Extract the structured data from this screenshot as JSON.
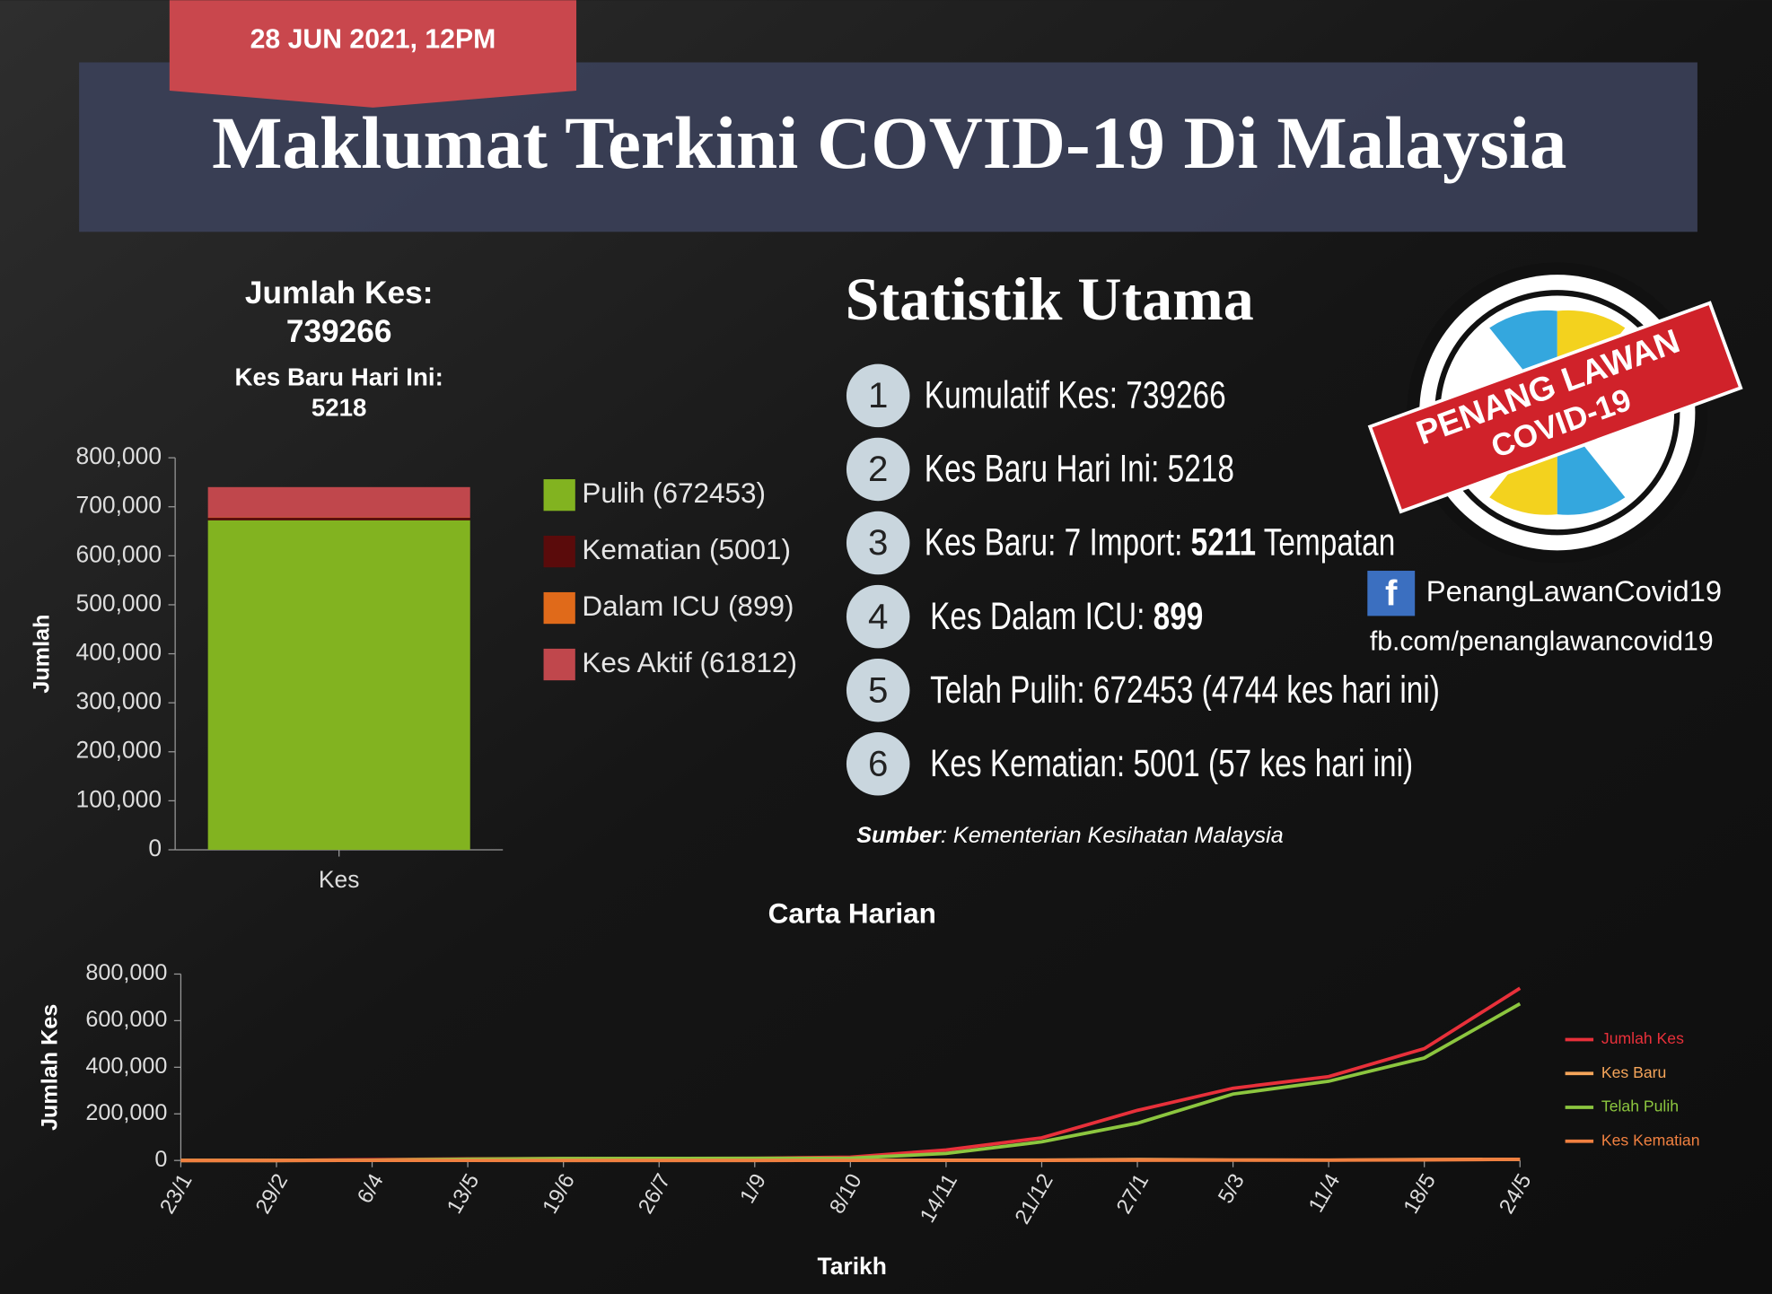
{
  "header": {
    "date": "28 JUN 2021, 12PM",
    "title": "Maklumat Terkini COVID-19 Di Malaysia"
  },
  "summary": {
    "total_label": "Jumlah Kes:",
    "total": 739266,
    "new_label": "Kes Baru Hari Ini:",
    "new": 5218
  },
  "stats": {
    "title": "Statistik Utama",
    "items": [
      {
        "number": 1,
        "parts": [
          {
            "text": "Kumulatif Kes: 739266",
            "bold": false
          }
        ]
      },
      {
        "number": 2,
        "parts": [
          {
            "text": "Kes Baru Hari Ini: 5218",
            "bold": false
          }
        ]
      },
      {
        "number": 3,
        "parts": [
          {
            "text": "Kes Baru: 7 Import: ",
            "bold": false
          },
          {
            "text": "5211",
            "bold": true
          },
          {
            "text": " Tempatan",
            "bold": false
          }
        ]
      },
      {
        "number": 4,
        "parts": [
          {
            "text": "Kes Dalam ICU: ",
            "bold": false
          },
          {
            "text": "899",
            "bold": true
          }
        ]
      },
      {
        "number": 5,
        "parts": [
          {
            "text": "Telah Pulih: 672453 (4744 kes hari ini)",
            "bold": false
          }
        ]
      },
      {
        "number": 6,
        "parts": [
          {
            "text": "Kes Kematian: 5001 (57 kes hari ini)",
            "bold": false
          }
        ]
      }
    ],
    "source_label": "Sumber",
    "source": ": Kementerian Kesihatan Malaysia"
  },
  "logo": {
    "line1": "PENANG LAWAN",
    "line2": "COVID-19"
  },
  "social": {
    "icon": "f",
    "page": "PenangLawanCovid19",
    "url": "fb.com/penanglawancovid19"
  },
  "chart_data": [
    {
      "type": "bar",
      "stacked": true,
      "categories": [
        "Kes"
      ],
      "ylabel": "Jumlah",
      "ylim": [
        0,
        800000
      ],
      "yticks": [
        0,
        {
          "value": 100000,
          "label": "100,000"
        },
        {
          "value": 200000,
          "label": "200,000"
        },
        {
          "value": 300000,
          "label": "300,000"
        },
        {
          "value": 400000,
          "label": "400,000"
        },
        {
          "value": 500000,
          "label": "500,000"
        },
        {
          "value": 600000,
          "label": "600,000"
        },
        {
          "value": 700000,
          "label": "700,000"
        },
        {
          "value": 800000,
          "label": "800,000"
        }
      ],
      "series": [
        {
          "name": "Pulih (672453)",
          "color": "#82b320",
          "values": [
            672453
          ]
        },
        {
          "name": "Kematian (5001)",
          "color": "#5a0b0b",
          "values": [
            5001
          ]
        },
        {
          "name": "Dalam ICU (899)",
          "color": "#e06a1a",
          "values": [
            899
          ]
        },
        {
          "name": "Kes Aktif (61812)",
          "color": "#c0474c",
          "values": [
            61812
          ]
        }
      ]
    },
    {
      "type": "line",
      "title": "Carta Harian",
      "xlabel": "Tarikh",
      "ylabel": "Jumlah Kes",
      "ylim": [
        0,
        800000
      ],
      "yticks": [
        0,
        {
          "value": 200000,
          "label": "200,000"
        },
        {
          "value": 400000,
          "label": "400,000"
        },
        {
          "value": 600000,
          "label": "600,000"
        },
        {
          "value": 800000,
          "label": "800,000"
        }
      ],
      "categories": [
        "23/1",
        "29/2",
        "6/4",
        "13/5",
        "19/6",
        "26/7",
        "1/9",
        "8/10",
        "14/11",
        "21/12",
        "27/1",
        "5/3",
        "11/4",
        "18/5",
        "24/5"
      ],
      "series": [
        {
          "name": "Jumlah Kes",
          "color": "#e8303a",
          "values": [
            0,
            25,
            3662,
            6779,
            8535,
            8904,
            9340,
            14368,
            45095,
            97000,
            215000,
            310000,
            360000,
            480000,
            739266
          ]
        },
        {
          "name": "Kes Baru",
          "color": "#f5a55a",
          "values": [
            0,
            0,
            200,
            50,
            10,
            20,
            10,
            300,
            1000,
            1500,
            4000,
            2000,
            1500,
            4000,
            5218
          ]
        },
        {
          "name": "Telah Pulih",
          "color": "#8cc63f",
          "values": [
            0,
            22,
            1000,
            5500,
            8300,
            8700,
            9100,
            10000,
            30000,
            80000,
            160000,
            285000,
            340000,
            440000,
            672453
          ]
        },
        {
          "name": "Kes Kematian",
          "color": "#f08040",
          "values": [
            0,
            0,
            60,
            110,
            121,
            124,
            128,
            140,
            300,
            400,
            700,
            1100,
            1300,
            2000,
            5001
          ]
        }
      ]
    }
  ]
}
